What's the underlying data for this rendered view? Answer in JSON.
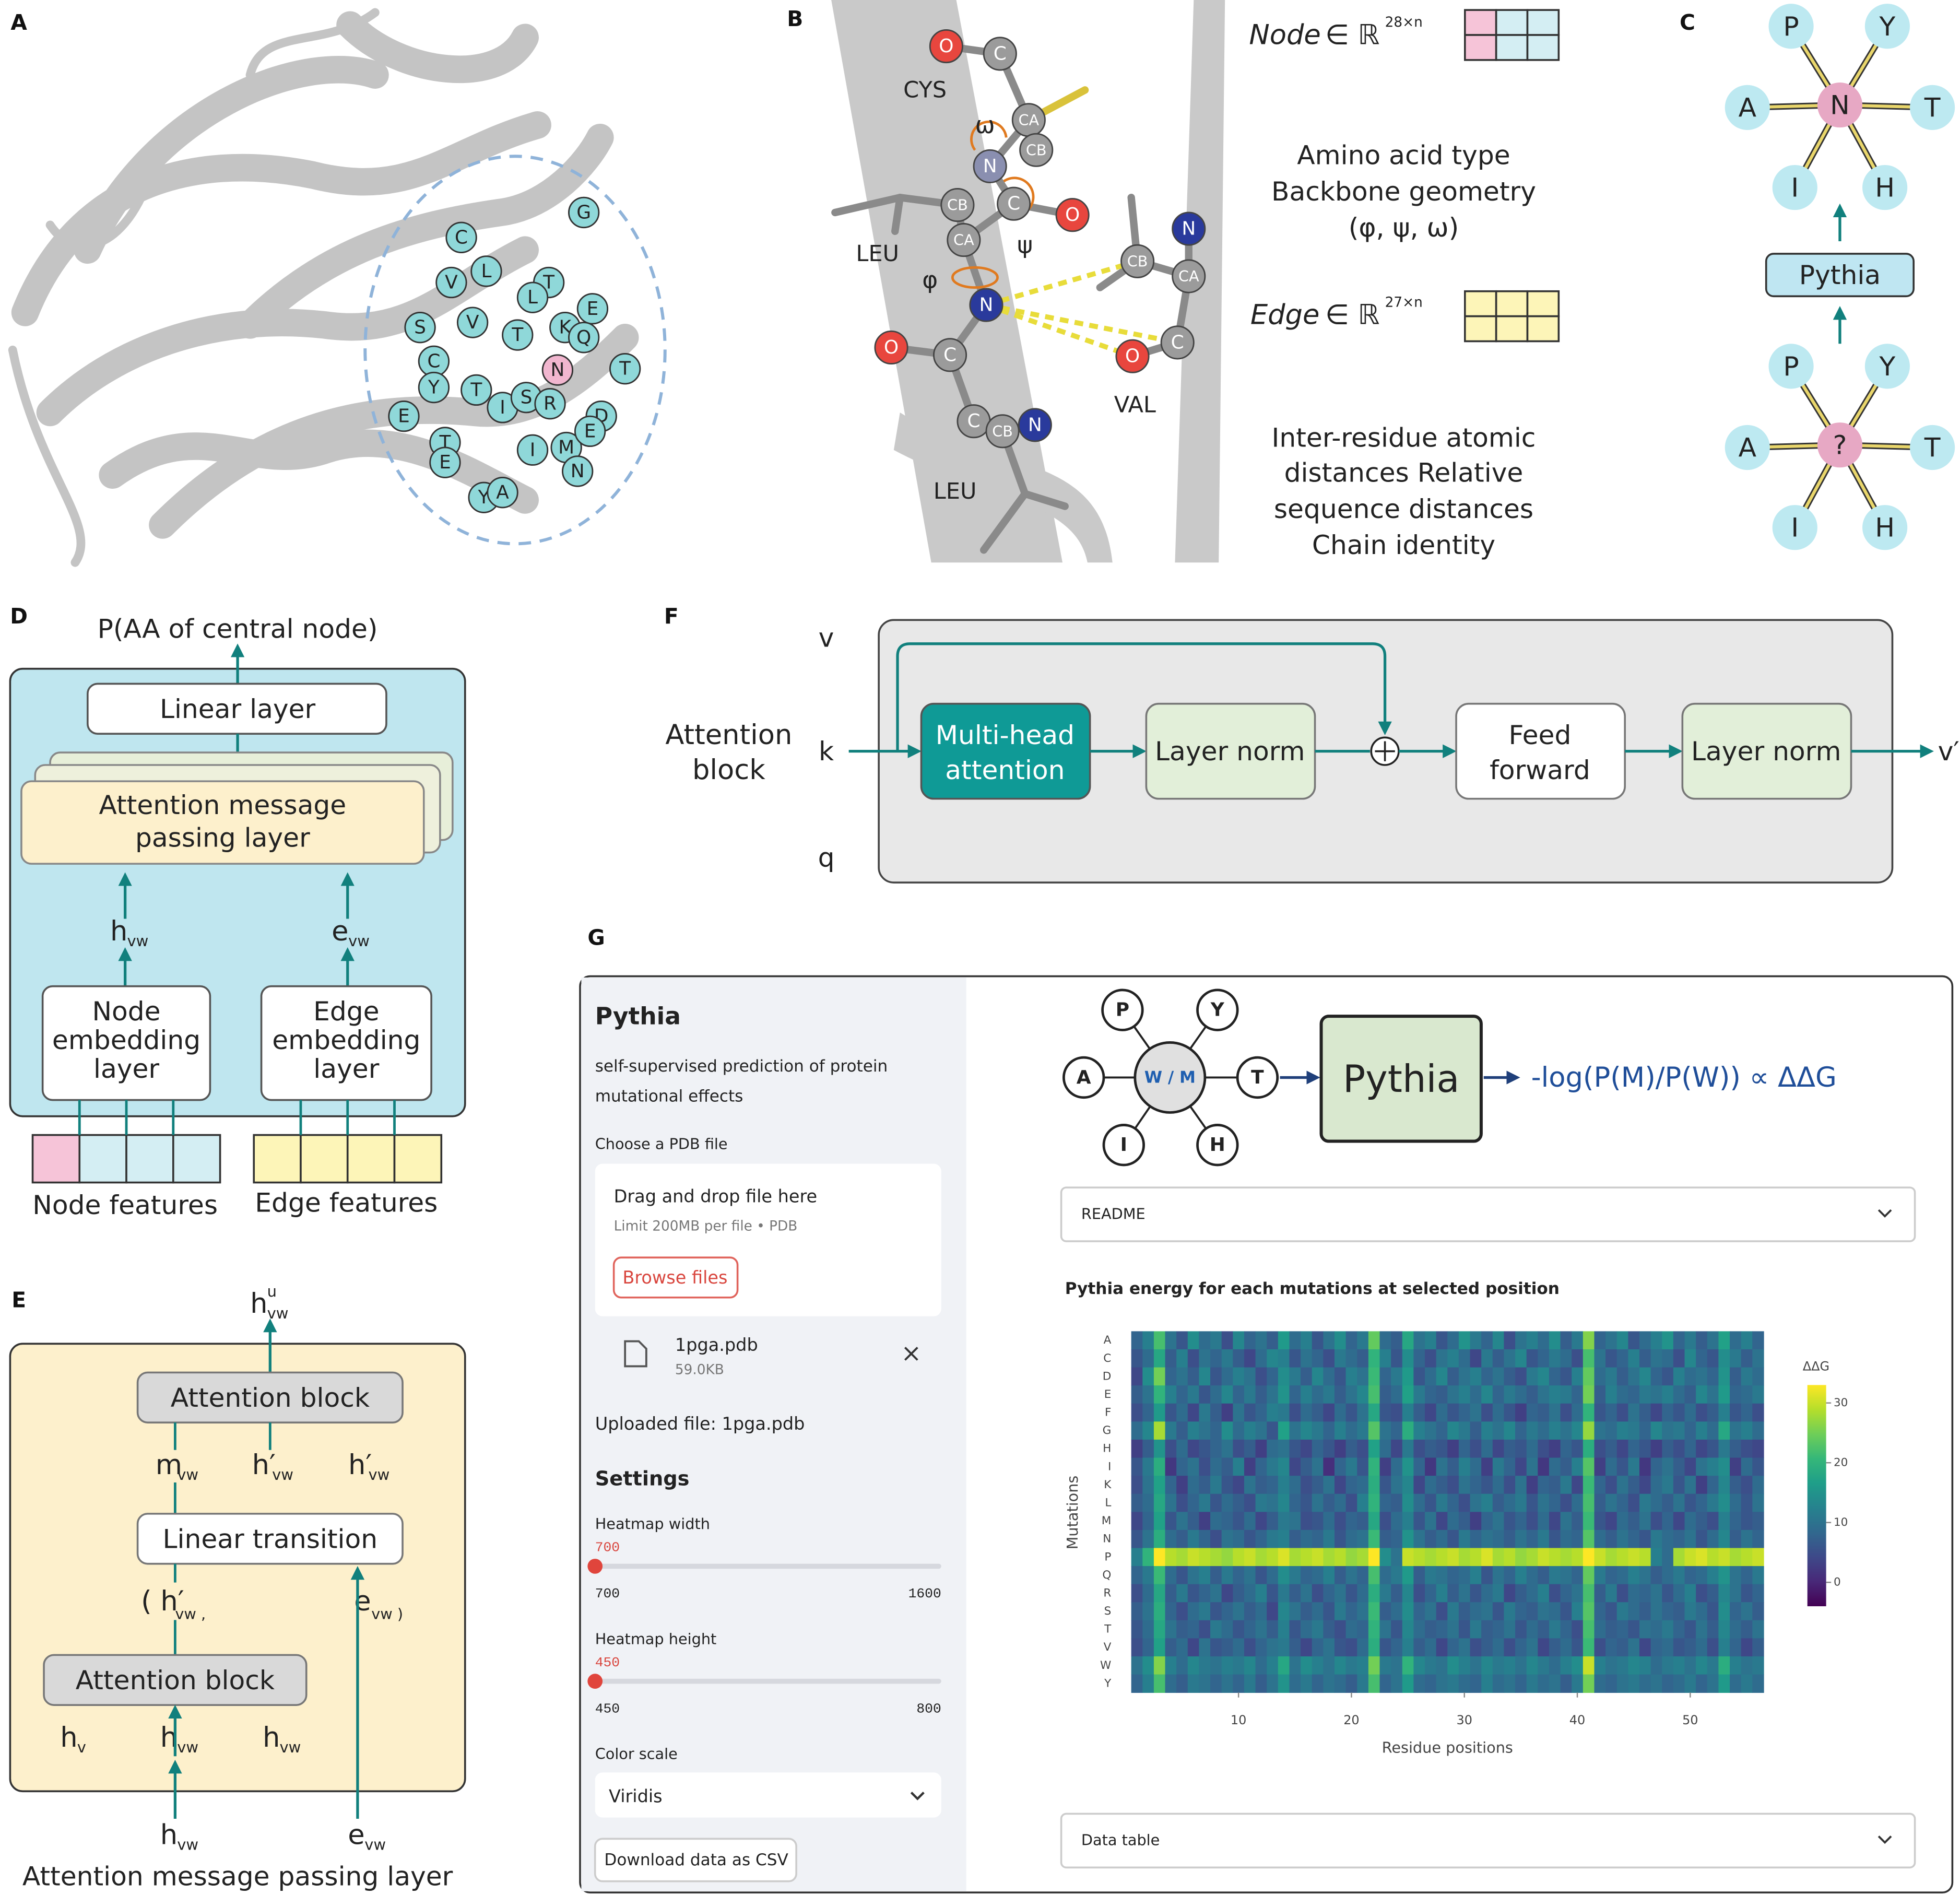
{
  "panel_labels": [
    "A",
    "B",
    "C",
    "D",
    "E",
    "F",
    "G"
  ],
  "panel_a": {
    "residues": [
      "G",
      "C",
      "V",
      "L",
      "T",
      "L",
      "E",
      "V",
      "S",
      "T",
      "K",
      "Q",
      "T",
      "C",
      "N",
      "Y",
      "T",
      "I",
      "S",
      "R",
      "D",
      "E",
      "T",
      "E",
      "I",
      "M",
      "E",
      "N",
      "Y",
      "A"
    ]
  },
  "panel_b": {
    "residues": [
      "CYS",
      "LEU",
      "VAL",
      "LEU"
    ],
    "atoms": [
      "O",
      "C",
      "CA",
      "CB",
      "N",
      "CB",
      "C",
      "O",
      "CA",
      "N",
      "O",
      "C",
      "C",
      "CB",
      "N",
      "N",
      "CB",
      "CA",
      "C",
      "O"
    ],
    "angles": [
      "ω",
      "ψ",
      "φ"
    ],
    "node_label": "Node",
    "node_set": "∈ ℝ",
    "node_dim": "28×n",
    "node_desc": [
      "Amino acid type",
      "Backbone geometry",
      "(φ, ψ, ω)"
    ],
    "edge_label": "Edge",
    "edge_set": "∈ ℝ",
    "edge_dim": "27×n",
    "edge_desc": [
      "Inter-residue atomic",
      "distances Relative",
      "sequence distances",
      "Chain identity"
    ]
  },
  "panel_c": {
    "top_nodes": [
      "P",
      "Y",
      "A",
      "N",
      "T",
      "I",
      "H"
    ],
    "model": "Pythia",
    "bottom_nodes": [
      "P",
      "Y",
      "A",
      "?",
      "T",
      "I",
      "H"
    ]
  },
  "panel_d": {
    "output": "P(AA of central node)",
    "linear": "Linear layer",
    "attention": [
      "Attention message",
      "passing layer"
    ],
    "h": "h",
    "h_sub": "vw",
    "e": "e",
    "e_sub": "vw",
    "node_embedding": [
      "Node",
      "embedding",
      "layer"
    ],
    "edge_embedding": [
      "Edge",
      "embedding",
      "layer"
    ],
    "node_features": "Node features",
    "edge_features": "Edge features"
  },
  "panel_e": {
    "output": "h",
    "output_sup": "u",
    "output_sub": "vw",
    "attention_top": "Attention block",
    "middle": [
      {
        "main": "m",
        "sub": "vw"
      },
      {
        "main": "h′",
        "sub": "vw"
      },
      {
        "main": "h′",
        "sub": "vw"
      }
    ],
    "linear": "Linear transition",
    "tuple_open": "( h′",
    "tuple_open_sub": "vw ,",
    "tuple_close": "e",
    "tuple_close_sub": "vw )",
    "attention_bottom": "Attention block",
    "inputs": [
      {
        "main": "h",
        "sub": "v"
      },
      {
        "main": "h",
        "sub": "vw"
      },
      {
        "main": "h",
        "sub": "vw"
      }
    ],
    "external": [
      {
        "main": "h",
        "sub": "vw"
      },
      {
        "main": "e",
        "sub": "vw"
      }
    ],
    "caption": "Attention message passing layer"
  },
  "panel_f": {
    "inputs": [
      "v",
      "k",
      "q"
    ],
    "block": [
      "Attention",
      "block"
    ],
    "mha": [
      "Multi-head",
      "attention"
    ],
    "norm1": "Layer norm",
    "ff": [
      "Feed",
      "forward"
    ],
    "norm2": "Layer norm",
    "output": "v′"
  },
  "panel_g": {
    "sidebar": {
      "title": "Pythia",
      "description": [
        "self-supervised prediction of protein",
        "mutational effects"
      ],
      "file_label": "Choose a PDB file",
      "drop": "Drag and drop file here",
      "limit": "Limit 200MB per file • PDB",
      "browse": "Browse files",
      "file_name": "1pga.pdb",
      "file_size": "59.0KB",
      "uploaded": "Uploaded file: 1pga.pdb",
      "settings": "Settings",
      "sliders": [
        {
          "label": "Heatmap width",
          "value": 700,
          "min": 700,
          "max": 1600
        },
        {
          "label": "Heatmap height",
          "value": 450,
          "min": 450,
          "max": 800
        }
      ],
      "color_label": "Color scale",
      "download": "Download data as CSV"
    },
    "diagram": {
      "nodes": [
        "P",
        "Y",
        "A",
        "W / M",
        "T",
        "I",
        "H"
      ],
      "model": "Pythia",
      "formula": "-log(P(M)/P(W)) ∝ ΔΔG"
    },
    "readme": "README",
    "data_table": "Data table"
  },
  "chart_data": {
    "type": "heatmap",
    "title": "Pythia energy for each mutations at selected position",
    "xlabel": "Residue positions",
    "ylabel": "Mutations",
    "colorbar_title": "ΔΔG",
    "colorscale": "Viridis",
    "x": [
      1,
      2,
      3,
      4,
      5,
      6,
      7,
      8,
      9,
      10,
      11,
      12,
      13,
      14,
      15,
      16,
      17,
      18,
      19,
      20,
      21,
      22,
      23,
      24,
      25,
      26,
      27,
      28,
      29,
      30,
      31,
      32,
      33,
      34,
      35,
      36,
      37,
      38,
      39,
      40,
      41,
      42,
      43,
      44,
      45,
      46,
      47,
      48,
      49,
      50,
      51,
      52,
      53,
      54,
      55,
      56
    ],
    "xlim": [
      0.5,
      56.5
    ],
    "xticks": [
      10,
      20,
      30,
      40,
      50
    ],
    "categories": [
      "A",
      "C",
      "D",
      "E",
      "F",
      "G",
      "H",
      "I",
      "K",
      "L",
      "M",
      "N",
      "P",
      "Q",
      "R",
      "S",
      "T",
      "V",
      "W",
      "Y"
    ],
    "zlim": [
      -4,
      33
    ],
    "zticks": [
      0,
      10,
      20,
      30
    ],
    "z": [
      [
        8,
        12,
        22,
        10,
        6,
        14,
        9,
        11,
        5,
        13,
        8,
        10,
        7,
        16,
        9,
        12,
        6,
        10,
        14,
        8,
        11,
        24,
        9,
        7,
        18,
        10,
        12,
        6,
        9,
        15,
        11,
        8,
        13,
        5,
        10,
        12,
        9,
        14,
        7,
        11,
        26,
        8,
        10,
        13,
        6,
        9,
        12,
        15,
        8,
        11,
        7,
        10,
        17,
        9,
        12,
        8
      ],
      [
        6,
        9,
        18,
        7,
        12,
        5,
        10,
        8,
        11,
        7,
        4,
        9,
        13,
        12,
        6,
        10,
        8,
        5,
        11,
        9,
        7,
        20,
        12,
        6,
        14,
        8,
        5,
        10,
        12,
        9,
        4,
        11,
        7,
        10,
        13,
        6,
        8,
        11,
        9,
        5,
        22,
        10,
        6,
        8,
        12,
        7,
        10,
        9,
        5,
        13,
        8,
        6,
        14,
        11,
        7,
        10
      ],
      [
        4,
        14,
        25,
        8,
        10,
        7,
        13,
        6,
        9,
        12,
        10,
        5,
        8,
        14,
        11,
        7,
        13,
        9,
        6,
        12,
        10,
        21,
        8,
        11,
        16,
        6,
        9,
        13,
        7,
        10,
        12,
        8,
        10,
        7,
        5,
        11,
        13,
        8,
        6,
        12,
        24,
        9,
        11,
        7,
        10,
        13,
        8,
        6,
        12,
        9,
        10,
        8,
        15,
        7,
        11,
        9
      ],
      [
        7,
        10,
        20,
        12,
        8,
        11,
        6,
        9,
        13,
        8,
        11,
        7,
        10,
        15,
        8,
        12,
        9,
        11,
        7,
        10,
        13,
        22,
        7,
        9,
        17,
        11,
        8,
        7,
        10,
        12,
        9,
        13,
        8,
        11,
        9,
        7,
        10,
        12,
        11,
        8,
        25,
        7,
        12,
        9,
        8,
        11,
        10,
        12,
        9,
        7,
        13,
        10,
        16,
        8,
        9,
        11
      ],
      [
        5,
        8,
        16,
        6,
        9,
        4,
        11,
        7,
        3,
        10,
        6,
        8,
        12,
        11,
        5,
        9,
        7,
        4,
        9,
        6,
        10,
        18,
        6,
        5,
        12,
        7,
        4,
        9,
        6,
        8,
        10,
        5,
        9,
        6,
        3,
        8,
        7,
        10,
        5,
        9,
        20,
        6,
        8,
        5,
        10,
        7,
        4,
        8,
        6,
        9,
        5,
        7,
        12,
        6,
        8,
        5
      ],
      [
        9,
        13,
        28,
        11,
        7,
        12,
        10,
        8,
        14,
        9,
        12,
        10,
        6,
        17,
        10,
        13,
        11,
        8,
        12,
        9,
        11,
        23,
        10,
        8,
        19,
        12,
        10,
        8,
        13,
        11,
        7,
        12,
        10,
        13,
        8,
        11,
        9,
        12,
        10,
        13,
        27,
        10,
        9,
        12,
        11,
        8,
        13,
        10,
        11,
        8,
        12,
        9,
        18,
        10,
        12,
        9
      ],
      [
        3,
        7,
        15,
        5,
        9,
        4,
        6,
        8,
        10,
        5,
        7,
        3,
        9,
        10,
        6,
        4,
        8,
        6,
        3,
        7,
        5,
        17,
        9,
        4,
        11,
        5,
        7,
        6,
        3,
        8,
        5,
        9,
        4,
        7,
        6,
        9,
        5,
        3,
        8,
        6,
        19,
        5,
        7,
        4,
        8,
        6,
        3,
        7,
        5,
        8,
        4,
        6,
        11,
        7,
        5,
        4
      ],
      [
        6,
        11,
        19,
        2,
        8,
        10,
        5,
        9,
        7,
        12,
        3,
        8,
        11,
        13,
        4,
        7,
        10,
        1,
        8,
        11,
        6,
        20,
        3,
        9,
        15,
        8,
        2,
        10,
        7,
        12,
        9,
        3,
        11,
        8,
        4,
        10,
        2,
        9,
        7,
        12,
        23,
        3,
        9,
        6,
        11,
        2,
        8,
        10,
        7,
        4,
        10,
        12,
        14,
        3,
        9,
        6
      ],
      [
        5,
        10,
        17,
        8,
        3,
        9,
        7,
        11,
        6,
        4,
        10,
        7,
        8,
        12,
        9,
        5,
        7,
        10,
        4,
        8,
        9,
        19,
        6,
        10,
        13,
        4,
        9,
        7,
        5,
        10,
        8,
        6,
        9,
        5,
        10,
        3,
        8,
        7,
        11,
        4,
        21,
        8,
        5,
        10,
        7,
        4,
        9,
        11,
        6,
        10,
        3,
        8,
        13,
        7,
        5,
        9
      ],
      [
        7,
        9,
        18,
        10,
        5,
        8,
        11,
        6,
        9,
        7,
        5,
        11,
        10,
        13,
        8,
        6,
        10,
        7,
        9,
        5,
        12,
        20,
        8,
        7,
        14,
        9,
        6,
        11,
        8,
        5,
        10,
        12,
        7,
        9,
        11,
        6,
        10,
        8,
        5,
        9,
        22,
        7,
        10,
        8,
        5,
        11,
        9,
        7,
        10,
        6,
        8,
        11,
        14,
        9,
        6,
        10
      ],
      [
        4,
        8,
        17,
        6,
        10,
        7,
        3,
        9,
        8,
        6,
        9,
        4,
        7,
        11,
        10,
        5,
        6,
        9,
        5,
        8,
        7,
        18,
        5,
        9,
        12,
        6,
        10,
        4,
        9,
        7,
        3,
        8,
        10,
        6,
        8,
        5,
        9,
        4,
        10,
        7,
        21,
        6,
        4,
        9,
        7,
        10,
        5,
        8,
        4,
        9,
        7,
        5,
        12,
        8,
        6,
        7
      ],
      [
        6,
        10,
        19,
        9,
        7,
        11,
        8,
        5,
        10,
        9,
        6,
        8,
        11,
        12,
        7,
        9,
        8,
        11,
        6,
        9,
        10,
        21,
        7,
        8,
        15,
        10,
        7,
        9,
        6,
        11,
        8,
        10,
        9,
        7,
        10,
        8,
        11,
        6,
        9,
        8,
        23,
        9,
        7,
        10,
        8,
        6,
        11,
        9,
        8,
        10,
        6,
        9,
        13,
        7,
        10,
        8
      ],
      [
        12,
        20,
        33,
        29,
        28,
        30,
        29,
        28,
        27,
        29,
        30,
        28,
        29,
        31,
        28,
        29,
        30,
        28,
        29,
        27,
        28,
        33,
        14,
        10,
        30,
        29,
        28,
        29,
        30,
        28,
        29,
        31,
        28,
        29,
        27,
        28,
        30,
        29,
        28,
        29,
        33,
        30,
        28,
        29,
        30,
        29,
        12,
        9,
        28,
        30,
        31,
        29,
        30,
        28,
        29,
        30
      ],
      [
        8,
        11,
        21,
        9,
        6,
        10,
        12,
        7,
        11,
        8,
        10,
        6,
        9,
        14,
        11,
        8,
        9,
        12,
        7,
        10,
        8,
        22,
        9,
        11,
        16,
        7,
        11,
        10,
        8,
        9,
        12,
        6,
        10,
        8,
        12,
        9,
        7,
        11,
        10,
        8,
        24,
        11,
        8,
        9,
        12,
        10,
        7,
        9,
        11,
        8,
        9,
        12,
        15,
        10,
        8,
        11
      ],
      [
        5,
        9,
        18,
        7,
        11,
        6,
        8,
        10,
        4,
        7,
        9,
        12,
        6,
        11,
        7,
        10,
        5,
        8,
        10,
        6,
        9,
        19,
        11,
        7,
        13,
        5,
        8,
        12,
        7,
        10,
        6,
        9,
        11,
        4,
        7,
        9,
        12,
        5,
        8,
        10,
        22,
        7,
        11,
        5,
        9,
        8,
        10,
        6,
        9,
        12,
        5,
        7,
        13,
        10,
        6,
        8
      ],
      [
        7,
        10,
        19,
        8,
        5,
        9,
        11,
        6,
        8,
        10,
        7,
        9,
        4,
        13,
        10,
        7,
        9,
        6,
        11,
        8,
        10,
        21,
        7,
        9,
        14,
        8,
        10,
        5,
        11,
        7,
        9,
        10,
        6,
        11,
        8,
        7,
        10,
        9,
        6,
        12,
        23,
        8,
        6,
        11,
        9,
        7,
        10,
        8,
        7,
        11,
        9,
        6,
        14,
        8,
        10,
        7
      ],
      [
        6,
        9,
        18,
        10,
        7,
        8,
        5,
        11,
        9,
        6,
        8,
        10,
        7,
        12,
        6,
        9,
        11,
        7,
        5,
        9,
        8,
        20,
        10,
        6,
        13,
        9,
        7,
        8,
        10,
        6,
        11,
        7,
        8,
        10,
        6,
        9,
        7,
        11,
        8,
        5,
        22,
        9,
        7,
        8,
        6,
        10,
        9,
        11,
        8,
        6,
        10,
        7,
        13,
        9,
        7,
        10
      ],
      [
        5,
        8,
        17,
        7,
        9,
        4,
        10,
        6,
        7,
        9,
        5,
        8,
        10,
        11,
        7,
        4,
        8,
        10,
        6,
        5,
        9,
        19,
        6,
        8,
        12,
        7,
        9,
        4,
        8,
        10,
        5,
        7,
        9,
        5,
        8,
        10,
        4,
        7,
        9,
        6,
        21,
        5,
        8,
        7,
        10,
        4,
        8,
        9,
        6,
        7,
        9,
        5,
        12,
        8,
        4,
        7
      ],
      [
        10,
        14,
        26,
        12,
        9,
        13,
        11,
        10,
        12,
        11,
        13,
        9,
        12,
        18,
        10,
        14,
        12,
        10,
        13,
        11,
        12,
        25,
        11,
        10,
        20,
        13,
        11,
        10,
        14,
        12,
        10,
        13,
        11,
        12,
        10,
        13,
        11,
        9,
        12,
        14,
        30,
        12,
        10,
        11,
        13,
        12,
        9,
        11,
        12,
        10,
        13,
        11,
        19,
        12,
        10,
        11
      ],
      [
        8,
        12,
        22,
        9,
        7,
        11,
        10,
        8,
        10,
        8,
        11,
        7,
        10,
        15,
        9,
        11,
        8,
        10,
        9,
        7,
        11,
        22,
        8,
        10,
        16,
        9,
        8,
        10,
        11,
        9,
        8,
        12,
        9,
        10,
        8,
        11,
        9,
        10,
        7,
        11,
        25,
        9,
        8,
        10,
        11,
        9,
        10,
        8,
        9,
        11,
        8,
        10,
        16,
        9,
        11,
        9
      ]
    ]
  }
}
